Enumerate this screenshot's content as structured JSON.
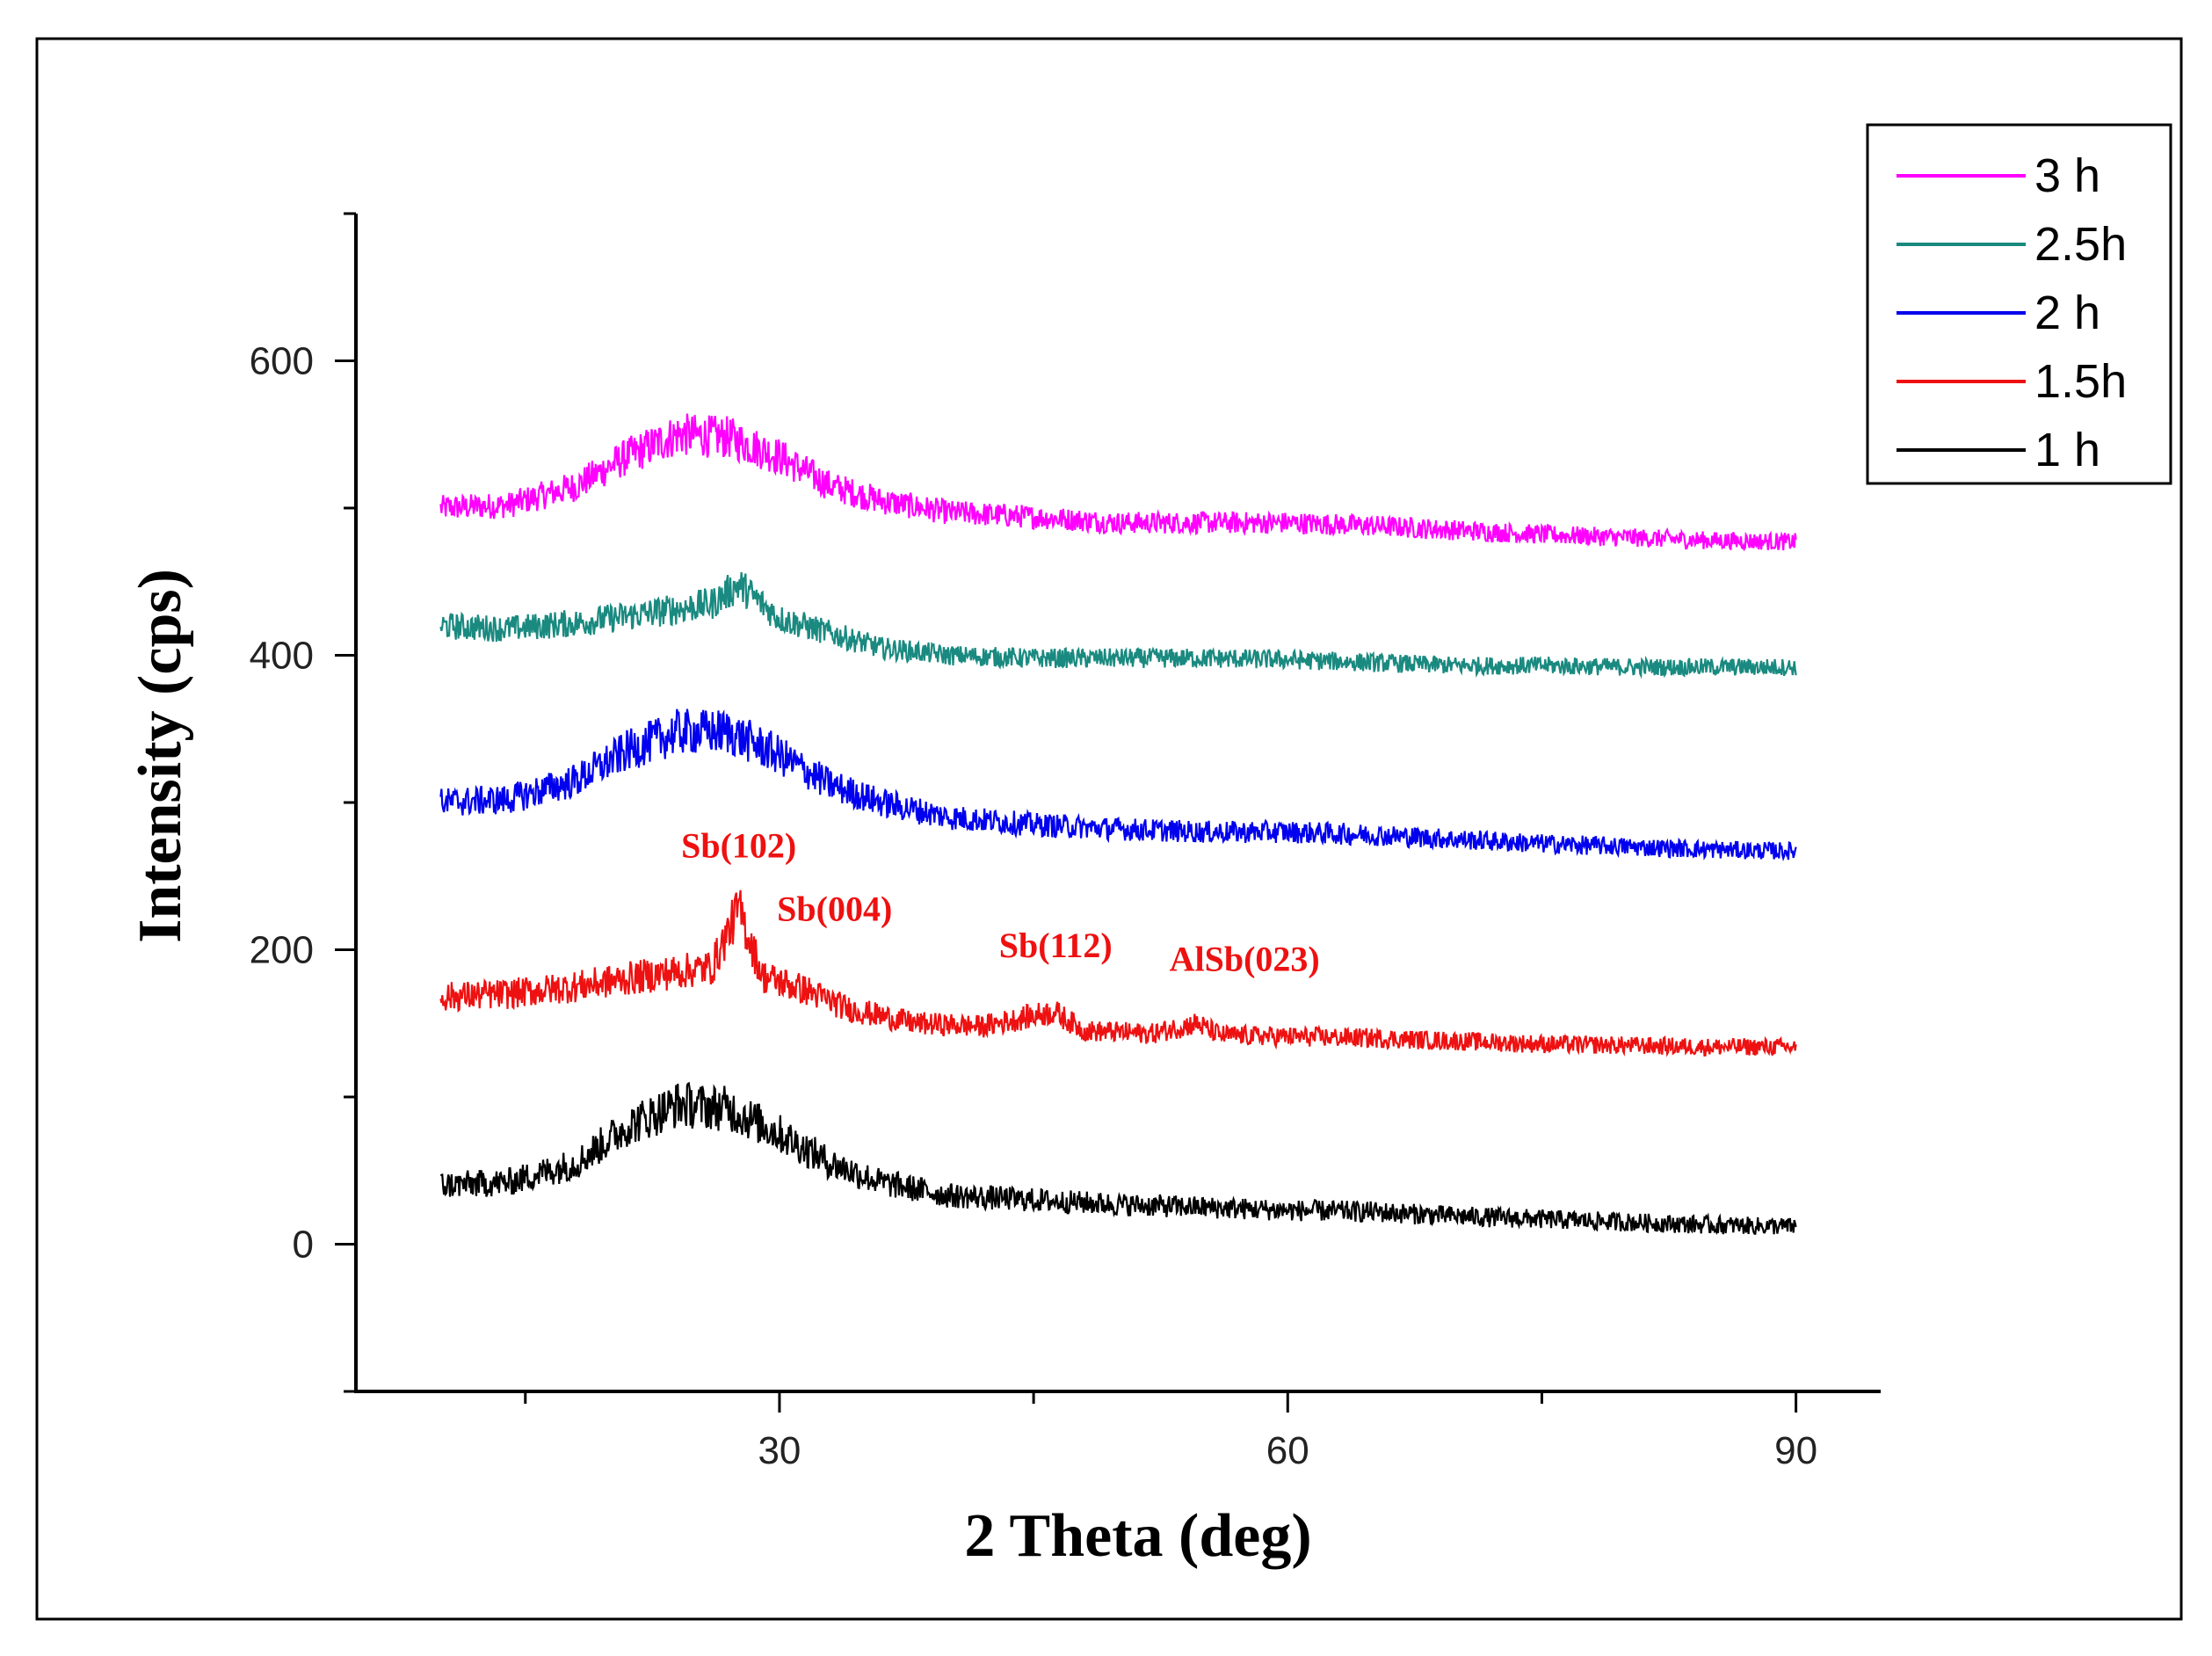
{
  "chart_data": {
    "type": "line",
    "title": "",
    "xlabel": "2 Theta (deg)",
    "ylabel": "Intensity (cps)",
    "xlim": [
      5,
      95
    ],
    "ylim": [
      -100,
      700
    ],
    "x_ticks": [
      30,
      60,
      90
    ],
    "y_ticks": [
      0,
      200,
      400,
      600
    ],
    "grid": false,
    "legend_position": "top-right",
    "series": [
      {
        "name": "3 h",
        "color": "#ff00ff",
        "x": [
          10,
          14,
          18,
          21,
          24,
          27,
          30,
          33,
          36,
          40,
          45,
          50,
          55,
          60,
          65,
          70,
          75,
          80,
          85,
          90
        ],
        "y": [
          500,
          502,
          515,
          535,
          550,
          548,
          535,
          515,
          505,
          497,
          494,
          490,
          490,
          490,
          488,
          485,
          482,
          480,
          478,
          477
        ]
      },
      {
        "name": "2.5h",
        "color": "#1a8a80",
        "x": [
          10,
          14,
          18,
          22,
          26,
          27.6,
          30,
          33,
          36,
          40,
          45,
          50,
          55,
          60,
          65,
          70,
          75,
          80,
          85,
          90
        ],
        "y": [
          420,
          418,
          422,
          428,
          435,
          448,
          425,
          415,
          405,
          400,
          398,
          398,
          398,
          397,
          395,
          393,
          393,
          392,
          392,
          392
        ]
      },
      {
        "name": "2  h",
        "color": "#0000ee",
        "x": [
          10,
          14,
          18,
          21,
          24,
          27,
          30,
          33,
          36,
          40,
          45,
          50,
          55,
          60,
          65,
          70,
          75,
          80,
          85,
          90
        ],
        "y": [
          300,
          302,
          315,
          335,
          348,
          348,
          332,
          312,
          300,
          290,
          285,
          282,
          280,
          280,
          278,
          275,
          272,
          270,
          268,
          267
        ]
      },
      {
        "name": "1.5h",
        "color": "#ee1111",
        "x": [
          10,
          14,
          18,
          22,
          26,
          27.6,
          29,
          31.7,
          34,
          38,
          42,
          46.2,
          48,
          52,
          54.6,
          56,
          60,
          65,
          70,
          75,
          80,
          85,
          90
        ],
        "y": [
          168,
          170,
          175,
          182,
          188,
          228,
          182,
          172,
          160,
          150,
          148,
          158,
          145,
          143,
          150,
          142,
          141,
          140,
          138,
          136,
          135,
          134,
          134
        ]
      },
      {
        "name": "1 h",
        "color": "#000000",
        "x": [
          10,
          14,
          18,
          21,
          24,
          27,
          30,
          33,
          36,
          40,
          45,
          50,
          55,
          60,
          65,
          70,
          75,
          80,
          85,
          90
        ],
        "y": [
          40,
          42,
          55,
          80,
          95,
          92,
          75,
          55,
          42,
          33,
          30,
          27,
          25,
          23,
          22,
          19,
          17,
          15,
          13,
          12
        ]
      }
    ],
    "annotations": [
      {
        "text": "Sb(102)",
        "x": 27.6,
        "y": 228,
        "color": "#ee1111"
      },
      {
        "text": "Sb(004)",
        "x": 31.7,
        "y": 172,
        "color": "#ee1111"
      },
      {
        "text": "Sb(112)",
        "x": 46.2,
        "y": 158,
        "color": "#ee1111"
      },
      {
        "text": "AlSb(023)",
        "x": 54.6,
        "y": 150,
        "color": "#ee1111"
      }
    ]
  }
}
